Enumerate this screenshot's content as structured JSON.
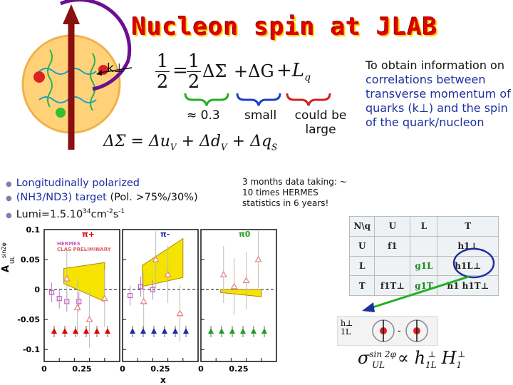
{
  "title": "Nucleon spin at JLAB",
  "diagram": {
    "k_label": "k⊥"
  },
  "equation": {
    "lhs_num": "1",
    "lhs_den": "2",
    "eq": "=",
    "rhs_num": "1",
    "rhs_den": "2",
    "delta_sigma": "ΔΣ",
    "plus_dg": "+ΔG",
    "plus_l": "+L",
    "l_sub": "q"
  },
  "annotations": {
    "approx": "≈ 0.3",
    "small": "small",
    "could_be_large_1": "could be",
    "could_be_large_2": "large"
  },
  "equation2": {
    "text": "ΔΣ = Δu",
    "sub1": "V",
    "mid": " + Δd",
    "sub2": "V",
    "end": " + Δq",
    "sub3": "S"
  },
  "side_text": {
    "l1": "To obtain information on",
    "l2a": "correlations",
    "l2b": " between",
    "l3": "transverse momentum of quarks (k",
    "l3b": "⊥",
    "l3c": ") and",
    "l4a": "the ",
    "l4b": "spin",
    "l4c": " of the quark/nucleon"
  },
  "bullets": [
    {
      "text": "Longitudinally polarized"
    },
    {
      "a": "(NH3/ND3) target ",
      "b": "(Pol. >75%/30%)"
    },
    {
      "a": "Lumi=1.5.10",
      "sup1": "34",
      "b": "cm",
      "sup2": "-2",
      "c": "s",
      "sup3": "-1"
    }
  ],
  "months_text": "3 months data taking: ~ 10 times HERMES statistics in 6 years!",
  "tmd_table": {
    "header": [
      "N\\q",
      "U",
      "L",
      "T"
    ],
    "rows": [
      [
        "U",
        "f1",
        "",
        "h1⊥"
      ],
      [
        "L",
        "",
        "g1L",
        "h1L⊥"
      ],
      [
        "T",
        "f1T⊥",
        "g1T",
        "h1  h1T⊥"
      ]
    ]
  },
  "h1l_label": "h⊥\n1L",
  "formula_bottom": {
    "sigma": "σ",
    "sup": "sin 2φ",
    "sub": "UL",
    "prop": "∝ h",
    "h1l_sub": "1L",
    "h1l_sup": "⊥",
    "H": " H",
    "H_sub": "1",
    "H_sup": "⊥"
  },
  "chart_data": {
    "type": "scatter",
    "ylabel": "A",
    "ylabel_sup": "sin2φ",
    "ylabel_sub": "UL",
    "xlabel": "x",
    "ylim": [
      -0.12,
      0.1
    ],
    "yticks": [
      "0.1",
      "0.05",
      "0",
      "-0.05",
      "-0.1"
    ],
    "yticks_v": [
      0.1,
      0.05,
      0,
      -0.05,
      -0.1
    ],
    "xticks": [
      "0",
      "0.25",
      "0",
      "0.25",
      "0",
      "0.25"
    ],
    "panels": [
      {
        "label": "π+",
        "label_color": "#e00000",
        "marker_color": "#e00000",
        "legend": [
          "HERMES",
          "CLAS PRELIMINARY"
        ],
        "hermes_x": [
          0.05,
          0.1,
          0.15,
          0.23
        ],
        "hermes_y": [
          -0.005,
          -0.015,
          -0.02,
          -0.02
        ],
        "clas_x": [
          0.15,
          0.22,
          0.3,
          0.4
        ],
        "clas_y": [
          0.018,
          -0.03,
          -0.05,
          -0.015
        ],
        "band_x": [
          0.13,
          0.4
        ],
        "band_top": [
          0.035,
          0.045
        ],
        "band_bot": [
          0.01,
          -0.02
        ]
      },
      {
        "label": "π-",
        "label_color": "#1c2fa0",
        "marker_color": "#1c2fa0",
        "hermes_x": [
          0.05,
          0.12,
          0.2
        ],
        "hermes_y": [
          -0.01,
          0.005,
          0.0
        ],
        "clas_x": [
          0.14,
          0.22,
          0.3,
          0.38
        ],
        "clas_y": [
          -0.02,
          0.05,
          0.025,
          -0.04
        ],
        "band_x": [
          0.13,
          0.4
        ],
        "band_top": [
          0.04,
          0.085
        ],
        "band_bot": [
          0.005,
          0.02
        ]
      },
      {
        "label": "π0",
        "label_color": "#20a020",
        "marker_color": "#20a020",
        "clas_x": [
          0.15,
          0.22,
          0.3,
          0.38
        ],
        "clas_y": [
          0.025,
          0.005,
          0.015,
          0.05
        ],
        "band_x": [
          0.13,
          0.4
        ],
        "band_top": [
          0.0,
          0.0
        ],
        "band_bot": [
          -0.005,
          -0.012
        ]
      }
    ],
    "marker_triangles_row_y": -0.07,
    "colors": {
      "band": "#f4e400",
      "bands_edge": "#b08a00"
    }
  }
}
